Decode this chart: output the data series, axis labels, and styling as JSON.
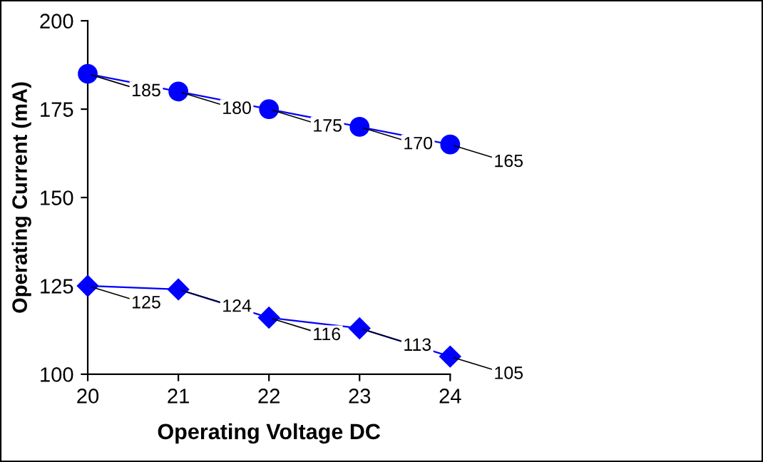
{
  "chart_data": {
    "type": "line",
    "xlabel": "Operating Voltage DC",
    "ylabel": "Operating Current (mA)",
    "x": [
      20,
      21,
      22,
      23,
      24
    ],
    "series": [
      {
        "color": "#0000ff",
        "marker": "circle",
        "values": [
          185,
          180,
          175,
          170,
          165
        ]
      },
      {
        "color": "#0000ff",
        "marker": "diamond",
        "values": [
          125,
          124,
          116,
          113,
          105
        ]
      }
    ],
    "xlim": [
      20,
      24
    ],
    "xticks": [
      20,
      21,
      22,
      23,
      24
    ],
    "ylim": [
      100,
      200
    ],
    "yticks": [
      100,
      125,
      150,
      175,
      200
    ],
    "grid": false,
    "data_labels": true,
    "line_style": "solid"
  }
}
